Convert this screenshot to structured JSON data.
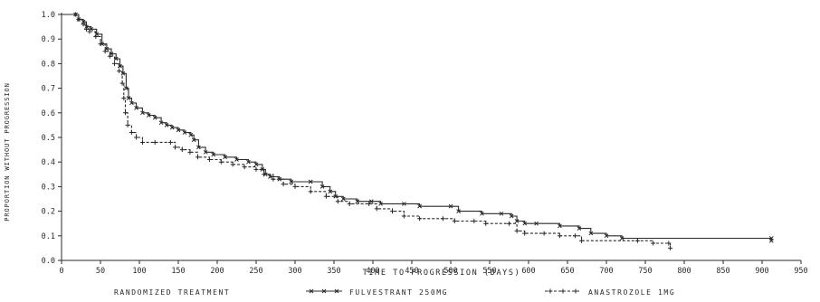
{
  "chart_data": {
    "type": "line",
    "xlabel": "TIME TO PROGRESSION (DAYS)",
    "ylabel": "PROPORTION WITHOUT PROGRESSION",
    "xlim": [
      0,
      950
    ],
    "ylim": [
      0.0,
      1.0
    ],
    "x_ticks": [
      "0",
      "50",
      "100",
      "150",
      "200",
      "250",
      "300",
      "350",
      "400",
      "450",
      "500",
      "550",
      "600",
      "650",
      "700",
      "750",
      "800",
      "850",
      "900",
      "950"
    ],
    "y_ticks": [
      "0.0",
      "0.1",
      "0.2",
      "0.3",
      "0.4",
      "0.5",
      "0.6",
      "0.7",
      "0.8",
      "0.9",
      "1.0"
    ],
    "legend": {
      "title": "RANDOMIZED TREATMENT",
      "placement": "bottom"
    },
    "series": [
      {
        "name": "FULVESTRANT 250MG",
        "marker": "cross",
        "line_style": "solid",
        "color": "#2a2a2a",
        "points": [
          [
            0,
            1.0
          ],
          [
            18,
            1.0
          ],
          [
            22,
            0.98
          ],
          [
            28,
            0.97
          ],
          [
            32,
            0.95
          ],
          [
            38,
            0.94
          ],
          [
            45,
            0.92
          ],
          [
            52,
            0.88
          ],
          [
            58,
            0.86
          ],
          [
            64,
            0.84
          ],
          [
            70,
            0.82
          ],
          [
            75,
            0.79
          ],
          [
            79,
            0.76
          ],
          [
            83,
            0.7
          ],
          [
            86,
            0.66
          ],
          [
            90,
            0.64
          ],
          [
            96,
            0.62
          ],
          [
            104,
            0.6
          ],
          [
            112,
            0.59
          ],
          [
            120,
            0.58
          ],
          [
            128,
            0.56
          ],
          [
            135,
            0.55
          ],
          [
            142,
            0.54
          ],
          [
            150,
            0.53
          ],
          [
            158,
            0.52
          ],
          [
            166,
            0.51
          ],
          [
            170,
            0.49
          ],
          [
            176,
            0.46
          ],
          [
            185,
            0.44
          ],
          [
            195,
            0.43
          ],
          [
            210,
            0.42
          ],
          [
            225,
            0.41
          ],
          [
            240,
            0.4
          ],
          [
            250,
            0.39
          ],
          [
            258,
            0.37
          ],
          [
            262,
            0.35
          ],
          [
            268,
            0.34
          ],
          [
            280,
            0.33
          ],
          [
            295,
            0.32
          ],
          [
            320,
            0.32
          ],
          [
            335,
            0.3
          ],
          [
            345,
            0.28
          ],
          [
            352,
            0.26
          ],
          [
            362,
            0.25
          ],
          [
            380,
            0.24
          ],
          [
            398,
            0.24
          ],
          [
            410,
            0.23
          ],
          [
            440,
            0.23
          ],
          [
            460,
            0.22
          ],
          [
            500,
            0.22
          ],
          [
            510,
            0.2
          ],
          [
            540,
            0.19
          ],
          [
            565,
            0.19
          ],
          [
            578,
            0.18
          ],
          [
            585,
            0.16
          ],
          [
            595,
            0.15
          ],
          [
            610,
            0.15
          ],
          [
            640,
            0.14
          ],
          [
            665,
            0.13
          ],
          [
            680,
            0.11
          ],
          [
            700,
            0.1
          ],
          [
            720,
            0.09
          ],
          [
            912,
            0.09
          ],
          [
            912,
            0.08
          ]
        ]
      },
      {
        "name": "ANASTROZOLE 1MG",
        "marker": "plus",
        "line_style": "dashed",
        "color": "#2a2a2a",
        "points": [
          [
            0,
            1.0
          ],
          [
            18,
            1.0
          ],
          [
            22,
            0.98
          ],
          [
            28,
            0.96
          ],
          [
            32,
            0.94
          ],
          [
            36,
            0.93
          ],
          [
            44,
            0.91
          ],
          [
            50,
            0.88
          ],
          [
            56,
            0.85
          ],
          [
            62,
            0.83
          ],
          [
            68,
            0.8
          ],
          [
            74,
            0.77
          ],
          [
            78,
            0.72
          ],
          [
            80,
            0.66
          ],
          [
            82,
            0.6
          ],
          [
            85,
            0.55
          ],
          [
            90,
            0.52
          ],
          [
            96,
            0.5
          ],
          [
            104,
            0.48
          ],
          [
            120,
            0.48
          ],
          [
            140,
            0.48
          ],
          [
            146,
            0.46
          ],
          [
            155,
            0.45
          ],
          [
            165,
            0.44
          ],
          [
            175,
            0.42
          ],
          [
            190,
            0.41
          ],
          [
            205,
            0.4
          ],
          [
            220,
            0.39
          ],
          [
            235,
            0.38
          ],
          [
            250,
            0.37
          ],
          [
            260,
            0.35
          ],
          [
            272,
            0.33
          ],
          [
            285,
            0.31
          ],
          [
            300,
            0.3
          ],
          [
            320,
            0.28
          ],
          [
            340,
            0.26
          ],
          [
            355,
            0.24
          ],
          [
            370,
            0.23
          ],
          [
            395,
            0.23
          ],
          [
            405,
            0.21
          ],
          [
            425,
            0.2
          ],
          [
            440,
            0.18
          ],
          [
            460,
            0.17
          ],
          [
            490,
            0.17
          ],
          [
            505,
            0.16
          ],
          [
            530,
            0.16
          ],
          [
            545,
            0.15
          ],
          [
            575,
            0.15
          ],
          [
            585,
            0.12
          ],
          [
            595,
            0.11
          ],
          [
            620,
            0.11
          ],
          [
            640,
            0.1
          ],
          [
            660,
            0.1
          ],
          [
            668,
            0.08
          ],
          [
            740,
            0.08
          ],
          [
            760,
            0.07
          ],
          [
            780,
            0.07
          ],
          [
            782,
            0.05
          ]
        ]
      }
    ]
  }
}
